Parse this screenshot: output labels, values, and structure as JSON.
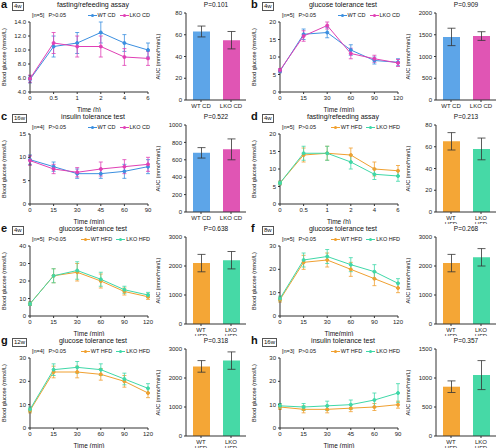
{
  "chart_data": [
    {
      "type": "line",
      "panel": "a",
      "subtitle": "4w",
      "title": "fasting/refeeding assay",
      "annotations": [
        "[n=5]",
        "P>0.05"
      ],
      "x_label": "Time (h)",
      "y_label": "Blood glucose (mmol/L)",
      "categories": [
        "0",
        "0.5",
        "1",
        "2",
        "4",
        "6"
      ],
      "ylim": [
        4,
        14
      ],
      "yticks": [
        {
          "value": 4,
          "label": "4.0"
        },
        {
          "value": 6,
          "label": "6.0"
        },
        {
          "value": 8,
          "label": "8.0"
        },
        {
          "value": 10,
          "label": "10.0"
        },
        {
          "value": 12,
          "label": "12.0"
        },
        {
          "value": 14,
          "label": "14.0"
        }
      ],
      "legend": "upper right",
      "series": [
        {
          "name": "WT CD",
          "color": "#3b8fe0",
          "marker": "circle",
          "values": [
            5.8,
            10.5,
            11.0,
            12.5,
            11.0,
            10.0
          ],
          "errors": [
            0.5,
            1.5,
            1.5,
            1.5,
            1.2,
            1.0
          ]
        },
        {
          "name": "LKO CD",
          "color": "#e040b5",
          "marker": "circle",
          "values": [
            5.9,
            11.0,
            10.5,
            10.5,
            9.0,
            8.8
          ],
          "errors": [
            0.5,
            1.5,
            1.5,
            1.5,
            1.2,
            1.0
          ]
        }
      ]
    },
    {
      "type": "bar",
      "title": "P=0.101",
      "y_label": "AUC (mmol*min/L)",
      "categories": [
        "WT CD",
        "LKO CD"
      ],
      "values": [
        63,
        55
      ],
      "errors": [
        5,
        8
      ],
      "colors": [
        "#5da5e8",
        "#e055b4"
      ],
      "ylim": [
        0,
        80
      ],
      "yticks": [
        0,
        20,
        40,
        60,
        80
      ]
    },
    {
      "type": "line",
      "panel": "b",
      "subtitle": "4w",
      "title": "glucose tolerance test",
      "annotations": [
        "[n=5]",
        "P>0.05"
      ],
      "x_label": "Time (min)",
      "y_label": "Blood glucose (mmol/L)",
      "categories": [
        "0",
        "15",
        "30",
        "60",
        "90",
        "120"
      ],
      "ylim": [
        0,
        20
      ],
      "yticks": [
        0,
        5,
        10,
        15,
        20
      ],
      "legend": "upper right",
      "series": [
        {
          "name": "WT CD",
          "color": "#3b8fe0",
          "marker": "circle",
          "values": [
            6.0,
            16.5,
            17.0,
            12.0,
            9.0,
            8.5
          ],
          "errors": [
            0.5,
            1.5,
            1.5,
            1.5,
            1.0,
            1.0
          ]
        },
        {
          "name": "LKO CD",
          "color": "#e040b5",
          "marker": "circle",
          "values": [
            6.2,
            16.0,
            19.0,
            11.0,
            9.5,
            8.3
          ],
          "errors": [
            0.5,
            1.5,
            1.0,
            1.5,
            1.0,
            1.0
          ]
        }
      ]
    },
    {
      "type": "bar",
      "title": "P=0.909",
      "y_label": "AUC (mmol*min/L)",
      "categories": [
        "WT CD",
        "LKO CD"
      ],
      "values": [
        1450,
        1470
      ],
      "errors": [
        200,
        100
      ],
      "colors": [
        "#5da5e8",
        "#e055b4"
      ],
      "ylim": [
        0,
        2000
      ],
      "yticks": [
        0,
        500,
        1000,
        1500,
        2000
      ]
    },
    {
      "type": "line",
      "panel": "c",
      "subtitle": "16w",
      "title": "insulin tolerance test",
      "annotations": [
        "[n=4]",
        "P>0.05"
      ],
      "x_label": "Time (min)",
      "y_label": "Blood glucose (mmol/L)",
      "categories": [
        "0",
        "15",
        "30",
        "45",
        "60",
        "90"
      ],
      "ylim": [
        0,
        15
      ],
      "yticks": [
        0,
        5,
        10,
        15
      ],
      "legend": "upper right",
      "series": [
        {
          "name": "WT CD",
          "color": "#3b8fe0",
          "marker": "circle",
          "values": [
            9.5,
            8.0,
            6.5,
            6.5,
            7.0,
            8.0
          ],
          "errors": [
            1.0,
            1.0,
            1.0,
            1.0,
            1.5,
            1.5
          ]
        },
        {
          "name": "LKO CD",
          "color": "#e040b5",
          "marker": "circle",
          "values": [
            9.3,
            7.5,
            6.8,
            7.5,
            8.0,
            8.5
          ],
          "errors": [
            1.0,
            1.0,
            1.0,
            1.5,
            1.5,
            1.5
          ]
        }
      ]
    },
    {
      "type": "bar",
      "title": "P=0.522",
      "y_label": "AUC (mmol*min/L)",
      "categories": [
        "WT CD",
        "LKO CD"
      ],
      "values": [
        680,
        720
      ],
      "errors": [
        60,
        120
      ],
      "colors": [
        "#5da5e8",
        "#e055b4"
      ],
      "ylim": [
        0,
        1000
      ],
      "yticks": [
        0,
        200,
        400,
        600,
        800,
        1000
      ]
    },
    {
      "type": "line",
      "panel": "d",
      "subtitle": "4w",
      "title": "fasting/refeeding assay",
      "annotations": [
        "[n=5]",
        "P>0.05"
      ],
      "x_label": "Time (h)",
      "y_label": "Blood glucose (mmol/L)",
      "categories": [
        "0",
        "0.5",
        "1",
        "2",
        "4",
        "6"
      ],
      "ylim": [
        0,
        20
      ],
      "yticks": [
        0,
        5,
        10,
        15,
        20
      ],
      "legend": "upper right",
      "series": [
        {
          "name": "WT HFD",
          "color": "#f0a030",
          "marker": "circle",
          "values": [
            6.0,
            14.0,
            14.5,
            14.0,
            10.0,
            9.5
          ],
          "errors": [
            0.5,
            2.0,
            2.0,
            2.0,
            2.0,
            1.5
          ]
        },
        {
          "name": "LKO HFD",
          "color": "#3fd8a8",
          "marker": "circle",
          "values": [
            6.0,
            14.5,
            14.5,
            12.0,
            8.5,
            8.0
          ],
          "errors": [
            0.5,
            2.0,
            2.0,
            2.0,
            1.5,
            1.5
          ]
        }
      ]
    },
    {
      "type": "bar",
      "title": "P=0.213",
      "y_label": "AUC (mmol*min/L)",
      "categories": [
        "WT HFD",
        "LKO HFD"
      ],
      "values": [
        65,
        58
      ],
      "errors": [
        8,
        10
      ],
      "colors": [
        "#f4a636",
        "#46d9a6"
      ],
      "ylim": [
        0,
        80
      ],
      "yticks": [
        0,
        20,
        40,
        60,
        80
      ]
    },
    {
      "type": "line",
      "panel": "e",
      "subtitle": "4w",
      "title": "glucose tolerance test",
      "annotations": [
        "[n=5]",
        "P>0.05"
      ],
      "x_label": "Time (min)",
      "y_label": "Blood glucose (mmol/L)",
      "categories": [
        "0",
        "15",
        "30",
        "60",
        "90",
        "120"
      ],
      "ylim": [
        0,
        40
      ],
      "yticks": [
        0,
        10,
        20,
        30,
        40
      ],
      "legend": "upper right",
      "series": [
        {
          "name": "WT HFD",
          "color": "#f0a030",
          "marker": "circle",
          "values": [
            7.0,
            23.0,
            25.0,
            20.0,
            14.0,
            11.0
          ],
          "errors": [
            1.0,
            4.0,
            5.0,
            4.0,
            2.0,
            1.5
          ]
        },
        {
          "name": "LKO HFD",
          "color": "#3fd8a8",
          "marker": "circle",
          "values": [
            7.0,
            23.0,
            26.0,
            21.0,
            15.0,
            12.0
          ],
          "errors": [
            1.0,
            4.0,
            5.0,
            4.0,
            2.0,
            1.5
          ]
        }
      ]
    },
    {
      "type": "bar",
      "title": "P=0.638",
      "y_label": "AUC (mmol*min/L)",
      "categories": [
        "WT HFD",
        "LKO HFD"
      ],
      "values": [
        2100,
        2200
      ],
      "errors": [
        300,
        300
      ],
      "colors": [
        "#f4a636",
        "#46d9a6"
      ],
      "ylim": [
        0,
        3000
      ],
      "yticks": [
        0,
        1000,
        2000,
        3000
      ]
    },
    {
      "type": "line",
      "panel": "f",
      "subtitle": "8w",
      "title": "glucose tolerance test",
      "annotations": [
        "[n=5]",
        "P>0.05"
      ],
      "x_label": "Time(min)",
      "y_label": "Blood glucose (mmol/L)",
      "categories": [
        "0",
        "15",
        "30",
        "60",
        "90",
        "120"
      ],
      "ylim": [
        0,
        30
      ],
      "yticks": [
        0,
        10,
        20,
        30
      ],
      "legend": "upper right",
      "series": [
        {
          "name": "WT HFD",
          "color": "#f0a030",
          "marker": "circle",
          "values": [
            7.0,
            23.0,
            24.0,
            20.0,
            16.0,
            12.0
          ],
          "errors": [
            1.0,
            3.0,
            3.0,
            3.0,
            3.0,
            2.0
          ]
        },
        {
          "name": "LKO HFD",
          "color": "#3fd8a8",
          "marker": "circle",
          "values": [
            7.5,
            24.0,
            25.5,
            22.0,
            19.0,
            14.0
          ],
          "errors": [
            1.0,
            3.0,
            3.0,
            3.0,
            3.0,
            2.0
          ]
        }
      ]
    },
    {
      "type": "bar",
      "title": "P=0.268",
      "y_label": "AUC (mmol*min/L)",
      "categories": [
        "WT HFD",
        "LKO HFD"
      ],
      "values": [
        2100,
        2300
      ],
      "errors": [
        300,
        300
      ],
      "colors": [
        "#f4a636",
        "#46d9a6"
      ],
      "ylim": [
        0,
        3000
      ],
      "yticks": [
        0,
        1000,
        2000,
        3000
      ]
    },
    {
      "type": "line",
      "panel": "g",
      "subtitle": "12w",
      "title": "glucose tolerance test",
      "annotations": [
        "[n=4]",
        "P>0.05"
      ],
      "x_label": "Time (min)",
      "y_label": "Blood glucose (mmol/L)",
      "categories": [
        "0",
        "15",
        "30",
        "60",
        "90",
        "120"
      ],
      "ylim": [
        0,
        30
      ],
      "yticks": [
        0,
        10,
        20,
        30
      ],
      "legend": "upper right",
      "series": [
        {
          "name": "WT HFD",
          "color": "#f0a030",
          "marker": "circle",
          "values": [
            7.5,
            24.0,
            24.0,
            23.0,
            20.0,
            15.0
          ],
          "errors": [
            1.0,
            2.5,
            2.5,
            2.5,
            2.5,
            2.0
          ]
        },
        {
          "name": "LKO HFD",
          "color": "#3fd8a8",
          "marker": "circle",
          "values": [
            8.0,
            25.0,
            26.0,
            25.0,
            21.0,
            17.0
          ],
          "errors": [
            1.0,
            2.5,
            2.5,
            2.5,
            2.5,
            2.0
          ]
        }
      ]
    },
    {
      "type": "bar",
      "title": "P=0.318",
      "y_label": "AUC (mmol*min/L)",
      "categories": [
        "WT HFD",
        "LKO HFD"
      ],
      "values": [
        2400,
        2600
      ],
      "errors": [
        200,
        300
      ],
      "colors": [
        "#f4a636",
        "#46d9a6"
      ],
      "ylim": [
        0,
        3000
      ],
      "yticks": [
        0,
        1000,
        2000,
        3000
      ]
    },
    {
      "type": "line",
      "panel": "h",
      "subtitle": "16w",
      "title": "insulin tolerance test",
      "annotations": [
        "[n=3]",
        "P>0.05"
      ],
      "x_label": "Time (min)",
      "y_label": "Blood glucose (mmol/L)",
      "categories": [
        "0",
        "15",
        "30",
        "45",
        "60",
        "90"
      ],
      "ylim": [
        0,
        30
      ],
      "yticks": [
        0,
        10,
        20,
        30
      ],
      "legend": "upper right",
      "series": [
        {
          "name": "WT HFD",
          "color": "#f0a030",
          "marker": "circle",
          "values": [
            9.0,
            8.0,
            8.0,
            8.5,
            9.0,
            10.0
          ],
          "errors": [
            1.0,
            1.5,
            1.5,
            1.5,
            1.5,
            1.5
          ]
        },
        {
          "name": "LKO HFD",
          "color": "#3fd8a8",
          "marker": "circle",
          "values": [
            9.5,
            9.0,
            9.5,
            10.0,
            12.0,
            15.0
          ],
          "errors": [
            1.0,
            1.5,
            2.0,
            2.0,
            3.0,
            4.0
          ]
        }
      ]
    },
    {
      "type": "bar",
      "title": "P=0.357",
      "y_label": "AUC (mmol*min/L)",
      "categories": [
        "WT HFD",
        "LKO HFD"
      ],
      "values": [
        850,
        1050
      ],
      "errors": [
        100,
        250
      ],
      "colors": [
        "#f4a636",
        "#46d9a6"
      ],
      "ylim": [
        0,
        1500
      ],
      "yticks": [
        0,
        500,
        1000,
        1500
      ]
    }
  ]
}
